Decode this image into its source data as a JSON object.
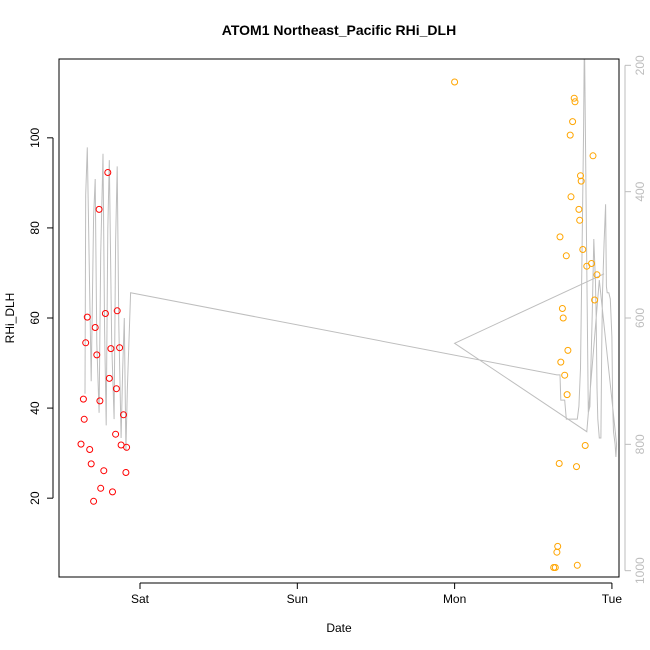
{
  "chart_data": {
    "type": "scatter",
    "title": "ATOM1 Northeast_Pacific RHi_DLH",
    "xlabel": "Date",
    "ylabel": "RHi_DLH",
    "y2label": "",
    "xlim": [
      -0.515,
      3.045
    ],
    "ylim": [
      2.5,
      117.5
    ],
    "y2lim": [
      1010,
      190
    ],
    "y2_reversed": true,
    "x_unit": "days from Sat 00:00",
    "x_ticks": [
      {
        "value": 0,
        "label": "Sat"
      },
      {
        "value": 1,
        "label": "Sun"
      },
      {
        "value": 2,
        "label": "Mon"
      },
      {
        "value": 3,
        "label": "Tue"
      }
    ],
    "y_ticks": [
      20,
      40,
      60,
      80,
      100
    ],
    "y2_ticks": [
      200,
      400,
      600,
      800,
      1000
    ],
    "colors": {
      "series1": "#ff0000",
      "series2": "#ffa500",
      "pressure_line": "#bebebe",
      "axis": "#000000",
      "right_axis": "#bdbdbd"
    },
    "series": [
      {
        "marker": "circle-open",
        "color": "#ff0000",
        "points": [
          [
            -0.375,
            32.0
          ],
          [
            -0.36,
            42.0
          ],
          [
            -0.355,
            37.5
          ],
          [
            -0.345,
            54.5
          ],
          [
            -0.335,
            60.2
          ],
          [
            -0.32,
            30.8
          ],
          [
            -0.31,
            27.6
          ],
          [
            -0.295,
            19.3
          ],
          [
            -0.285,
            57.9
          ],
          [
            -0.275,
            51.8
          ],
          [
            -0.26,
            84.1
          ],
          [
            -0.255,
            41.6
          ],
          [
            -0.25,
            22.2
          ],
          [
            -0.23,
            26.1
          ],
          [
            -0.22,
            61.0
          ],
          [
            -0.205,
            92.3
          ],
          [
            -0.195,
            46.6
          ],
          [
            -0.185,
            53.2
          ],
          [
            -0.175,
            21.4
          ],
          [
            -0.155,
            34.2
          ],
          [
            -0.15,
            44.3
          ],
          [
            -0.145,
            61.6
          ],
          [
            -0.13,
            53.4
          ],
          [
            -0.12,
            31.8
          ],
          [
            -0.105,
            38.5
          ],
          [
            -0.09,
            25.7
          ],
          [
            -0.085,
            31.3
          ]
        ]
      },
      {
        "marker": "circle-open",
        "color": "#ffa500",
        "points": [
          [
            2.0,
            112.4
          ],
          [
            2.63,
            4.6
          ],
          [
            2.64,
            4.6
          ],
          [
            2.65,
            8.0
          ],
          [
            2.655,
            9.3
          ],
          [
            2.665,
            27.7
          ],
          [
            2.67,
            78.0
          ],
          [
            2.675,
            50.2
          ],
          [
            2.685,
            62.1
          ],
          [
            2.69,
            60.0
          ],
          [
            2.7,
            47.3
          ],
          [
            2.71,
            73.8
          ],
          [
            2.715,
            43.0
          ],
          [
            2.72,
            52.8
          ],
          [
            2.735,
            100.6
          ],
          [
            2.74,
            86.9
          ],
          [
            2.75,
            103.6
          ],
          [
            2.76,
            108.8
          ],
          [
            2.765,
            108.0
          ],
          [
            2.775,
            27.0
          ],
          [
            2.78,
            5.1
          ],
          [
            2.79,
            84.1
          ],
          [
            2.795,
            81.7
          ],
          [
            2.8,
            91.6
          ],
          [
            2.805,
            90.4
          ],
          [
            2.815,
            75.2
          ],
          [
            2.83,
            31.7
          ],
          [
            2.84,
            71.5
          ],
          [
            2.87,
            72.1
          ],
          [
            2.88,
            96.0
          ],
          [
            2.89,
            64.0
          ],
          [
            2.905,
            69.6
          ]
        ]
      }
    ],
    "pressure_line_y2": [
      [
        -0.35,
        720
      ],
      [
        -0.345,
        405
      ],
      [
        -0.335,
        330
      ],
      [
        -0.32,
        560
      ],
      [
        -0.31,
        700
      ],
      [
        -0.295,
        440
      ],
      [
        -0.285,
        380
      ],
      [
        -0.275,
        640
      ],
      [
        -0.26,
        750
      ],
      [
        -0.25,
        500
      ],
      [
        -0.235,
        340
      ],
      [
        -0.225,
        620
      ],
      [
        -0.215,
        770
      ],
      [
        -0.205,
        460
      ],
      [
        -0.195,
        350
      ],
      [
        -0.18,
        640
      ],
      [
        -0.165,
        760
      ],
      [
        -0.155,
        480
      ],
      [
        -0.145,
        360
      ],
      [
        -0.135,
        610
      ],
      [
        -0.12,
        790
      ],
      [
        -0.11,
        680
      ],
      [
        -0.1,
        600
      ],
      [
        -0.09,
        810
      ],
      [
        -0.08,
        710
      ],
      [
        -0.06,
        560
      ],
      [
        2.65,
        690
      ],
      [
        2.67,
        690
      ],
      [
        2.675,
        730
      ],
      [
        2.7,
        730
      ],
      [
        2.71,
        760
      ],
      [
        2.78,
        760
      ],
      [
        2.79,
        740
      ],
      [
        2.8,
        680
      ],
      [
        2.81,
        500
      ],
      [
        2.82,
        300
      ],
      [
        2.825,
        150
      ],
      [
        2.835,
        400
      ],
      [
        2.85,
        750
      ],
      [
        2.86,
        740
      ],
      [
        2.875,
        590
      ],
      [
        2.885,
        475
      ],
      [
        2.895,
        540
      ],
      [
        2.9,
        600
      ],
      [
        2.905,
        710
      ],
      [
        2.91,
        760
      ],
      [
        2.92,
        790
      ],
      [
        2.93,
        790
      ],
      [
        2.935,
        650
      ],
      [
        2.94,
        560
      ],
      [
        2.95,
        480
      ],
      [
        2.96,
        420
      ],
      [
        2.965,
        550
      ],
      [
        2.97,
        560
      ],
      [
        2.98,
        560
      ],
      [
        2.99,
        570
      ],
      [
        3.0,
        630
      ],
      [
        3.005,
        740
      ],
      [
        3.01,
        780
      ],
      [
        3.02,
        800
      ],
      [
        3.025,
        820
      ],
      [
        3.03,
        800
      ],
      [
        2.92,
        540
      ],
      [
        2.84,
        780
      ],
      [
        2.0,
        640
      ],
      [
        2.95,
        530
      ]
    ]
  }
}
